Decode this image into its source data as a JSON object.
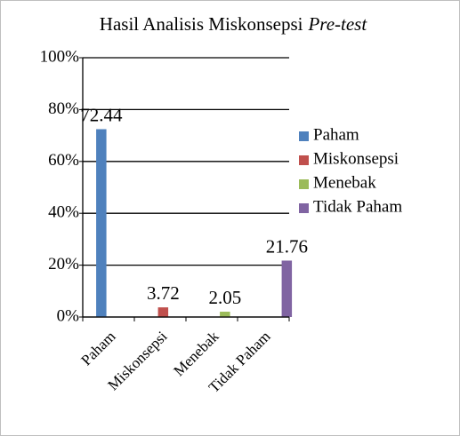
{
  "chart_data": {
    "type": "bar",
    "title": [
      "Hasil Analisis Miskonsepsi",
      "Pre-test"
    ],
    "categories": [
      "Paham",
      "Miskonsepsi",
      "Menebak",
      "Tidak Paham"
    ],
    "series": [
      {
        "name": "Paham",
        "color": "#4f81bd",
        "values": [
          72.44,
          null,
          null,
          null
        ]
      },
      {
        "name": "Miskonsepsi",
        "color": "#c0504d",
        "values": [
          null,
          3.72,
          null,
          null
        ]
      },
      {
        "name": "Menebak",
        "color": "#9bbb59",
        "values": [
          null,
          null,
          2.05,
          null
        ]
      },
      {
        "name": "Tidak Paham",
        "color": "#8064a2",
        "values": [
          null,
          null,
          null,
          21.76
        ]
      }
    ],
    "ylim": [
      0,
      100
    ],
    "yticks": [
      {
        "value": 0,
        "label": "0%"
      },
      {
        "value": 20,
        "label": "20%"
      },
      {
        "value": 40,
        "label": "40%"
      },
      {
        "value": 60,
        "label": "60%"
      },
      {
        "value": 80,
        "label": "80%"
      },
      {
        "value": 100,
        "label": "100%"
      }
    ],
    "grid": true,
    "legend": "right"
  }
}
